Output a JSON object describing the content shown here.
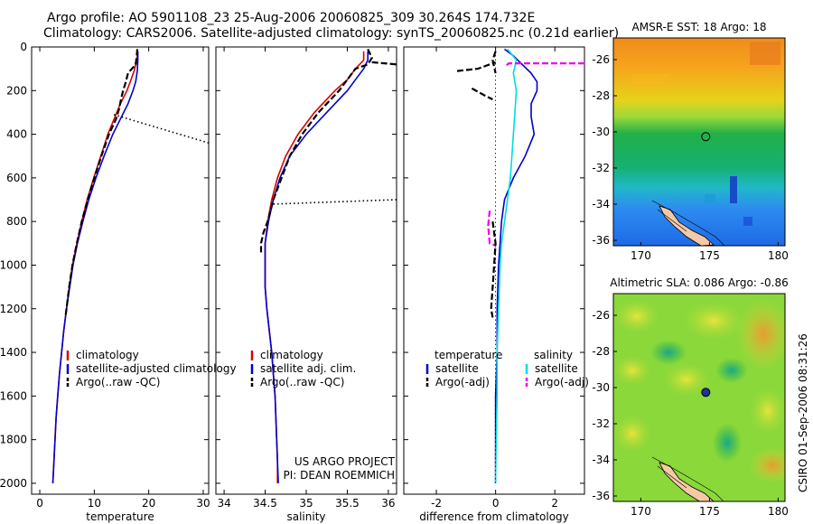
{
  "title": {
    "line1": "Argo profile: AO 5901108_23 25-Aug-2006 20060825_309 30.264S 174.732E",
    "line2": "Climatology: CARS2006. Satellite-adjusted climatology: synTS_20060825.nc (0.21d earlier)"
  },
  "side_label": "CSIRO 01-Sep-2006 08:31:26",
  "colors": {
    "red": "#dd0000",
    "blue": "#0000cc",
    "black": "#000000",
    "cyan": "#00dddd",
    "magenta": "#ee00ee",
    "land": "#f5c9a6"
  },
  "chart_data": [
    {
      "type": "line",
      "id": "temperature",
      "xlabel": "temperature",
      "xlim": [
        -1.5,
        31
      ],
      "xticks": [
        0,
        10,
        20,
        30
      ],
      "ylim": [
        2050,
        0
      ],
      "yticks": [
        0,
        200,
        400,
        600,
        800,
        1000,
        1200,
        1400,
        1600,
        1800,
        2000
      ],
      "legend": {
        "placement": "bottom-right",
        "entries": [
          {
            "label": "climatology",
            "color": "red"
          },
          {
            "label": "satellite-adjusted climatology",
            "color": "blue"
          },
          {
            "label": "Argo(..raw -QC)",
            "color": "black"
          }
        ]
      },
      "series": [
        {
          "color": "red",
          "dash": "solid",
          "pressure": [
            20,
            60,
            110,
            160,
            200,
            260,
            320,
            400,
            500,
            600,
            700,
            800,
            900,
            1000,
            1100,
            1200,
            1300,
            1400,
            1500,
            1600,
            1700,
            1800,
            1900,
            2000
          ],
          "values": [
            18,
            17.8,
            17.3,
            16.6,
            16.0,
            14.8,
            13.8,
            12.5,
            11.2,
            9.9,
            8.7,
            7.7,
            6.8,
            6.0,
            5.4,
            4.9,
            4.4,
            4.0,
            3.6,
            3.3,
            3.0,
            2.8,
            2.6,
            2.4
          ]
        },
        {
          "color": "blue",
          "dash": "solid",
          "pressure": [
            20,
            60,
            110,
            160,
            200,
            260,
            320,
            400,
            500,
            600,
            700,
            800,
            900,
            1000,
            1100,
            1200,
            1300,
            1400,
            1500,
            1600,
            1700,
            1800,
            1900,
            2000
          ],
          "values": [
            18,
            18,
            17.9,
            17.6,
            17.1,
            16.2,
            15.0,
            13.4,
            11.8,
            10.3,
            9.0,
            7.9,
            6.9,
            6.1,
            5.5,
            4.9,
            4.4,
            4.0,
            3.6,
            3.3,
            3.0,
            2.8,
            2.6,
            2.4
          ]
        },
        {
          "color": "black",
          "dash": "dash",
          "pressure": [
            10,
            40,
            80,
            120,
            160,
            200,
            240,
            280,
            330,
            400,
            500,
            600,
            700,
            800,
            900,
            1000,
            1100,
            1200,
            1240
          ],
          "values": [
            17.9,
            17.8,
            17.6,
            16.2,
            15.8,
            15.3,
            14.9,
            14.6,
            14.0,
            12.7,
            11.3,
            10.0,
            8.8,
            7.7,
            6.8,
            6.0,
            5.4,
            4.9,
            4.7
          ]
        },
        {
          "color": "black",
          "dash": "dot",
          "pressure": [
            310,
            440
          ],
          "values": [
            13.6,
            31
          ]
        }
      ]
    },
    {
      "type": "line",
      "id": "salinity",
      "xlabel": "salinity",
      "xlim": [
        33.9,
        36.1
      ],
      "xticks": [
        34,
        34.5,
        35,
        35.5,
        36
      ],
      "ylim": [
        2050,
        0
      ],
      "annotation": [
        "US ARGO PROJECT",
        "PI: DEAN ROEMMICH"
      ],
      "legend": {
        "placement": "bottom-right",
        "entries": [
          {
            "label": "climatology",
            "color": "red"
          },
          {
            "label": "satellite adj. clim.",
            "color": "blue"
          },
          {
            "label": "Argo(..raw -QC)",
            "color": "black"
          }
        ]
      },
      "series": [
        {
          "color": "red",
          "dash": "solid",
          "pressure": [
            20,
            60,
            100,
            150,
            200,
            300,
            400,
            500,
            600,
            700,
            800,
            900,
            1000,
            1100,
            1200,
            1300,
            1400,
            1500,
            1600,
            1700,
            1800,
            1900,
            2000
          ],
          "values": [
            35.7,
            35.7,
            35.6,
            35.5,
            35.35,
            35.1,
            34.9,
            34.75,
            34.65,
            34.58,
            34.53,
            34.5,
            34.5,
            34.5,
            34.52,
            34.55,
            34.58,
            34.6,
            34.62,
            34.63,
            34.64,
            34.65,
            34.65
          ]
        },
        {
          "color": "blue",
          "dash": "solid",
          "pressure": [
            20,
            60,
            100,
            150,
            200,
            300,
            400,
            500,
            600,
            700,
            800,
            900,
            1000,
            1100,
            1200,
            1300,
            1400,
            1500,
            1600,
            1700,
            1800,
            1900,
            2000
          ],
          "values": [
            35.75,
            35.75,
            35.7,
            35.6,
            35.5,
            35.25,
            35.0,
            34.8,
            34.68,
            34.6,
            34.54,
            34.5,
            34.5,
            34.5,
            34.52,
            34.55,
            34.58,
            34.6,
            34.62,
            34.63,
            34.64,
            34.65,
            34.66
          ]
        },
        {
          "color": "black",
          "dash": "dash",
          "pressure": [
            10,
            50,
            80,
            100,
            200,
            300,
            400,
            500,
            600,
            700,
            800,
            850,
            900,
            950
          ],
          "values": [
            35.75,
            35.8,
            35.75,
            35.6,
            35.4,
            35.15,
            34.95,
            34.8,
            34.7,
            34.6,
            34.53,
            34.48,
            34.45,
            34.45
          ]
        },
        {
          "color": "black",
          "dash": "dash",
          "pressure": [
            70,
            80
          ],
          "values": [
            35.8,
            36.1
          ]
        },
        {
          "color": "black",
          "dash": "dot",
          "pressure": [
            720,
            700
          ],
          "values": [
            34.6,
            36.1
          ]
        }
      ]
    },
    {
      "type": "line",
      "id": "difference",
      "xlabel": "difference from climatology",
      "xlim": [
        -3.1,
        3.0
      ],
      "xticks": [
        -2,
        0,
        2
      ],
      "ylim": [
        2050,
        0
      ],
      "legend": {
        "placement": "bottom",
        "groups": [
          {
            "title": "temperature",
            "entries": [
              {
                "label": "satellite",
                "color": "blue"
              },
              {
                "label": "Argo(-adj)",
                "color": "black"
              }
            ]
          },
          {
            "title": "salinity",
            "entries": [
              {
                "label": "satellite",
                "color": "cyan"
              },
              {
                "label": "Argo(-adj)",
                "color": "magenta"
              }
            ]
          }
        ]
      },
      "series": [
        {
          "color": "blue",
          "dash": "solid",
          "pressure": [
            10,
            40,
            80,
            120,
            160,
            200,
            260,
            320,
            400,
            500,
            600,
            700,
            800,
            900,
            1000,
            1200,
            1400,
            1600,
            1800,
            2000
          ],
          "values": [
            0.3,
            0.6,
            0.9,
            1.2,
            1.4,
            1.4,
            1.2,
            1.2,
            1.3,
            1.0,
            0.6,
            0.3,
            0.2,
            0.15,
            0.1,
            0.05,
            0.05,
            0.0,
            0.0,
            0.0
          ]
        },
        {
          "color": "cyan",
          "dash": "solid",
          "pressure": [
            10,
            60,
            120,
            200,
            300,
            400,
            500,
            600,
            700,
            800,
            900,
            1000,
            1200,
            1400,
            1600,
            1800,
            2000
          ],
          "values": [
            0.4,
            0.7,
            0.6,
            0.7,
            0.65,
            0.6,
            0.55,
            0.5,
            0.4,
            0.3,
            0.2,
            0.15,
            0.1,
            0.05,
            0.05,
            0.02,
            0.0
          ]
        },
        {
          "color": "magenta",
          "dash": "dash",
          "pressure": [
            75,
            75,
            90
          ],
          "values": [
            3.0,
            0.45,
            0.3
          ]
        },
        {
          "color": "magenta",
          "dash": "dash",
          "pressure": [
            750,
            820,
            900,
            910
          ],
          "values": [
            -0.2,
            -0.25,
            -0.2,
            0.0
          ]
        },
        {
          "color": "black",
          "dash": "dash",
          "pressure": [
            110,
            100,
            80,
            70
          ],
          "values": [
            -1.3,
            -0.6,
            -0.2,
            0.0
          ]
        },
        {
          "color": "black",
          "dash": "dash",
          "pressure": [
            190,
            220,
            240
          ],
          "values": [
            -0.8,
            -0.4,
            -0.1
          ]
        },
        {
          "color": "black",
          "dash": "dash",
          "pressure": [
            20,
            60,
            120
          ],
          "values": [
            0.0,
            -0.1,
            0.0
          ]
        },
        {
          "color": "black",
          "dash": "dash",
          "pressure": [
            800,
            900,
            1000,
            1100,
            1200,
            1240
          ],
          "values": [
            -0.1,
            0.0,
            -0.05,
            -0.1,
            -0.15,
            -0.1
          ]
        },
        {
          "color": "black",
          "dash": "dot",
          "pressure": [
            0,
            2000
          ],
          "values": [
            0,
            0
          ]
        }
      ]
    },
    {
      "type": "heatmap",
      "id": "sst-map",
      "title": "AMSR-E SST: 18 Argo: 18",
      "xlim": [
        168,
        180.5
      ],
      "ylim": [
        -36.3,
        -24.8
      ],
      "xticks": [
        170,
        175,
        180
      ],
      "yticks": [
        -26,
        -28,
        -30,
        -32,
        -34,
        -36
      ],
      "float_position": {
        "lon": 174.732,
        "lat": -30.264,
        "marker": "open-circle"
      }
    },
    {
      "type": "heatmap",
      "id": "sla-map",
      "title": "Altimetric SLA: 0.086 Argo: -0.86",
      "xlim": [
        168,
        180.5
      ],
      "ylim": [
        -36.3,
        -24.8
      ],
      "xticks": [
        170,
        175,
        180
      ],
      "yticks": [
        -26,
        -28,
        -30,
        -32,
        -34,
        -36
      ],
      "float_position": {
        "lon": 174.732,
        "lat": -30.264,
        "marker": "filled-circle"
      }
    }
  ]
}
